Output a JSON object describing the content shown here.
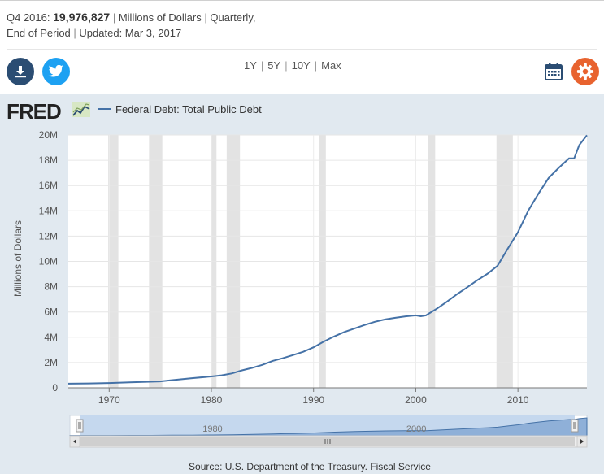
{
  "summary": {
    "period": "Q4 2016:",
    "value": "19,976,827",
    "units": "Millions of Dollars",
    "frequency": "Quarterly,",
    "aggregation": "End of Period",
    "updated": "Updated: Mar 3, 2017",
    "separator": "|"
  },
  "toolbar": {
    "ranges": [
      "1Y",
      "5Y",
      "10Y",
      "Max"
    ],
    "download_icon": "download-icon",
    "twitter_icon": "twitter-icon",
    "calendar_icon": "calendar-icon",
    "settings_icon": "gear-icon",
    "colors": {
      "download": "#2b4d73",
      "twitter": "#1da1f2",
      "settings": "#e8632f"
    }
  },
  "brand": {
    "logo_text": "FRED"
  },
  "chart_data": {
    "type": "line",
    "legend": "Federal Debt: Total Public Debt",
    "ylabel": "Millions of Dollars",
    "xlabel": "",
    "ylim": [
      0,
      20000000
    ],
    "xlim": [
      1966.0,
      2016.75
    ],
    "y_ticks": [
      {
        "value": 0,
        "label": "0"
      },
      {
        "value": 2000000,
        "label": "2M"
      },
      {
        "value": 4000000,
        "label": "4M"
      },
      {
        "value": 6000000,
        "label": "6M"
      },
      {
        "value": 8000000,
        "label": "8M"
      },
      {
        "value": 10000000,
        "label": "10M"
      },
      {
        "value": 12000000,
        "label": "12M"
      },
      {
        "value": 14000000,
        "label": "14M"
      },
      {
        "value": 16000000,
        "label": "16M"
      },
      {
        "value": 18000000,
        "label": "18M"
      },
      {
        "value": 20000000,
        "label": "20M"
      }
    ],
    "x_ticks": [
      {
        "value": 1970,
        "label": "1970"
      },
      {
        "value": 1980,
        "label": "1980"
      },
      {
        "value": 1990,
        "label": "1990"
      },
      {
        "value": 2000,
        "label": "2000"
      },
      {
        "value": 2010,
        "label": "2010"
      }
    ],
    "grid": true,
    "legend_position": "top-left",
    "recessions": [
      [
        1969.9,
        1970.9
      ],
      [
        1973.9,
        1975.2
      ],
      [
        1980.0,
        1980.5
      ],
      [
        1981.5,
        1982.8
      ],
      [
        1990.5,
        1991.2
      ],
      [
        2001.2,
        2001.9
      ],
      [
        2007.9,
        2009.5
      ]
    ],
    "series": [
      {
        "name": "Federal Debt: Total Public Debt",
        "color": "#4572a7",
        "points": [
          [
            1966.0,
            329000
          ],
          [
            1968.0,
            350000
          ],
          [
            1970.0,
            381000
          ],
          [
            1972.0,
            436000
          ],
          [
            1974.0,
            481000
          ],
          [
            1975.0,
            510000
          ],
          [
            1976.0,
            600000
          ],
          [
            1978.0,
            760000
          ],
          [
            1980.0,
            900000
          ],
          [
            1981.0,
            990000
          ],
          [
            1982.0,
            1140000
          ],
          [
            1983.0,
            1380000
          ],
          [
            1984.0,
            1580000
          ],
          [
            1985.0,
            1820000
          ],
          [
            1986.0,
            2130000
          ],
          [
            1987.0,
            2340000
          ],
          [
            1988.0,
            2590000
          ],
          [
            1989.0,
            2850000
          ],
          [
            1990.0,
            3200000
          ],
          [
            1991.0,
            3660000
          ],
          [
            1992.0,
            4060000
          ],
          [
            1993.0,
            4410000
          ],
          [
            1994.0,
            4690000
          ],
          [
            1995.0,
            4970000
          ],
          [
            1996.0,
            5220000
          ],
          [
            1997.0,
            5410000
          ],
          [
            1998.0,
            5540000
          ],
          [
            1999.0,
            5650000
          ],
          [
            2000.0,
            5730000
          ],
          [
            2000.5,
            5660000
          ],
          [
            2001.0,
            5730000
          ],
          [
            2002.0,
            6230000
          ],
          [
            2003.0,
            6780000
          ],
          [
            2004.0,
            7380000
          ],
          [
            2005.0,
            7930000
          ],
          [
            2006.0,
            8500000
          ],
          [
            2007.0,
            9010000
          ],
          [
            2008.0,
            9650000
          ],
          [
            2009.0,
            11000000
          ],
          [
            2010.0,
            12300000
          ],
          [
            2011.0,
            14000000
          ],
          [
            2012.0,
            15350000
          ],
          [
            2013.0,
            16600000
          ],
          [
            2014.0,
            17400000
          ],
          [
            2015.0,
            18150000
          ],
          [
            2015.5,
            18150000
          ],
          [
            2016.0,
            19200000
          ],
          [
            2016.75,
            19976827
          ]
        ]
      }
    ],
    "navigator": {
      "x_labels": [
        {
          "value": 1980,
          "label": "1980"
        },
        {
          "value": 2000,
          "label": "2000"
        }
      ],
      "scrollbar_icon": "grip-icon",
      "left_arrow_icon": "arrow-left-icon",
      "right_arrow_icon": "arrow-right-icon"
    },
    "source": "Source: U.S. Department of the Treasury. Fiscal Service"
  }
}
